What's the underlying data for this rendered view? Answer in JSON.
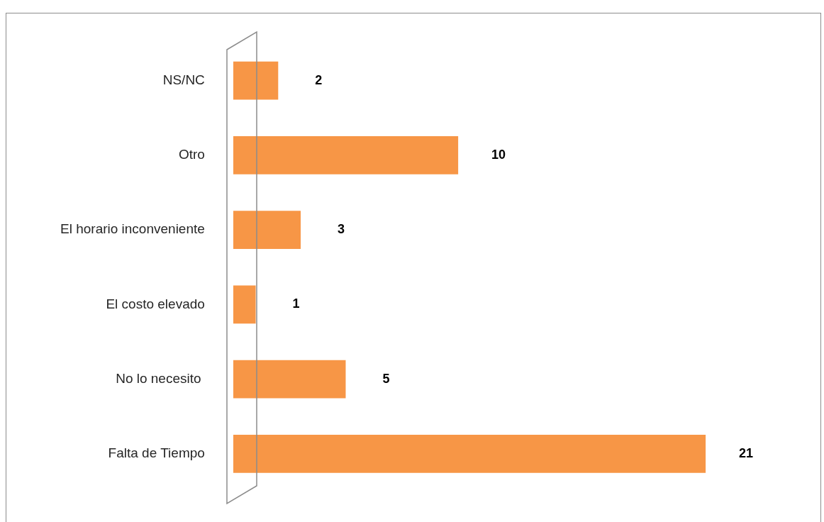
{
  "chart_data": {
    "type": "bar",
    "orientation": "horizontal",
    "categories": [
      "NS/NC",
      "Otro",
      "El horario inconveniente",
      "El costo elevado",
      "No lo necesito ",
      "Falta de Tiempo"
    ],
    "values": [
      2,
      10,
      3,
      1,
      5,
      21
    ],
    "color": "#f79646",
    "data_labels": true,
    "tick_labels": "y"
  }
}
